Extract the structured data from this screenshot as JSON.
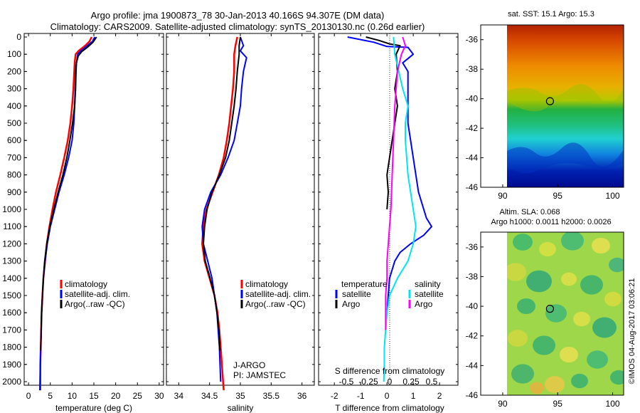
{
  "header": {
    "line1": "Argo profile: jma 1900873_78 30-Jan-2013 40.166S 94.307E (DM data)",
    "line2": "Climatology: CARS2009. Satellite-adjusted climatology: synTS_20130130.nc (0.26d earlier)"
  },
  "colors": {
    "climatology": "#ff0000",
    "satellite": "#0000ff",
    "argo": "#000000",
    "salinity_satellite": "#00e5ee",
    "salinity_argo": "#ff00ff"
  },
  "chart_data": [
    {
      "type": "line",
      "id": "temperature",
      "xlabel": "temperature (deg C)",
      "xlim": [
        -1,
        31
      ],
      "xticks": [
        0,
        5,
        10,
        15,
        20,
        25,
        30
      ],
      "ylim": [
        0,
        2050
      ],
      "yticks": [
        0,
        100,
        200,
        300,
        400,
        500,
        600,
        700,
        800,
        900,
        1000,
        1100,
        1200,
        1300,
        1400,
        1500,
        1600,
        1700,
        1800,
        1900,
        2000
      ],
      "legend": [
        "climatology",
        "satellite-adj. clim.",
        "Argo(..raw -QC)"
      ],
      "series": [
        {
          "name": "climatology",
          "color": "#ff0000",
          "width": 2.5,
          "x": [
            14.5,
            14.0,
            13.0,
            11.5,
            10.8,
            10.6,
            10.5,
            10.3,
            10.0,
            9.6,
            9.0,
            8.2,
            7.3,
            6.3,
            5.5,
            4.8,
            4.2,
            3.8,
            3.4,
            3.2,
            3.0,
            2.9,
            2.8,
            2.7,
            2.7
          ],
          "y": [
            0,
            25,
            50,
            80,
            100,
            150,
            200,
            300,
            400,
            500,
            600,
            700,
            800,
            900,
            1000,
            1100,
            1200,
            1300,
            1400,
            1500,
            1600,
            1700,
            1800,
            1900,
            2050
          ]
        },
        {
          "name": "satellite-adj. clim.",
          "color": "#0000ff",
          "width": 2,
          "x": [
            15.2,
            14.7,
            13.5,
            12.0,
            11.3,
            11.0,
            10.8,
            10.7,
            10.6,
            10.4,
            10.0,
            9.2,
            8.2,
            7.0,
            6.0,
            5.0,
            4.3,
            3.8,
            3.4,
            3.2,
            3.0,
            2.9,
            2.8,
            2.7,
            2.6
          ],
          "y": [
            0,
            25,
            50,
            80,
            100,
            150,
            200,
            300,
            400,
            500,
            600,
            700,
            800,
            900,
            1000,
            1100,
            1200,
            1300,
            1400,
            1500,
            1600,
            1700,
            1800,
            1900,
            2050
          ]
        },
        {
          "name": "Argo(..raw -QC)",
          "color": "#000000",
          "width": 2,
          "x": [
            15.6,
            14.8,
            13.5,
            12.2,
            11.4,
            11.0,
            10.9,
            10.8,
            10.6,
            10.1,
            9.5,
            8.8,
            7.9,
            6.8,
            5.8,
            4.9,
            4.2,
            3.7,
            3.4,
            3.2,
            3.0,
            2.9,
            2.8
          ],
          "y": [
            0,
            30,
            60,
            85,
            110,
            150,
            200,
            300,
            400,
            500,
            600,
            700,
            800,
            900,
            1000,
            1100,
            1200,
            1300,
            1400,
            1500,
            1600,
            1700,
            1820
          ]
        }
      ],
      "annotations": []
    },
    {
      "type": "line",
      "id": "salinity",
      "xlabel": "salinity",
      "xlim": [
        33.8,
        36.2
      ],
      "xticks": [
        34,
        34.5,
        35,
        35.5,
        36
      ],
      "ylim": [
        0,
        2050
      ],
      "legend": [
        "climatology",
        "satellite-adj. clim.",
        "Argo(..raw -QC)"
      ],
      "series": [
        {
          "name": "climatology",
          "color": "#ff0000",
          "width": 2.5,
          "x": [
            34.95,
            34.92,
            34.9,
            34.9,
            34.88,
            34.85,
            34.82,
            34.78,
            34.73,
            34.65,
            34.55,
            34.45,
            34.4,
            34.38,
            34.42,
            34.5,
            34.58,
            34.63,
            34.66,
            34.68,
            34.7,
            34.72,
            34.73
          ],
          "y": [
            0,
            50,
            100,
            200,
            300,
            400,
            500,
            600,
            700,
            800,
            900,
            1000,
            1100,
            1200,
            1300,
            1400,
            1500,
            1600,
            1700,
            1800,
            1900,
            2000,
            2050
          ]
        },
        {
          "name": "satellite-adj. clim.",
          "color": "#0000ff",
          "width": 2,
          "x": [
            35.0,
            35.05,
            35.0,
            35.1,
            35.05,
            35.02,
            35.0,
            34.95,
            34.9,
            34.8,
            34.68,
            34.52,
            34.42,
            34.38,
            34.4,
            34.47,
            34.54,
            34.58,
            34.62,
            34.64,
            34.66,
            34.67,
            34.68
          ],
          "y": [
            0,
            50,
            80,
            120,
            200,
            300,
            400,
            500,
            600,
            700,
            800,
            900,
            1000,
            1100,
            1200,
            1300,
            1400,
            1500,
            1600,
            1700,
            1800,
            1900,
            2000
          ]
        },
        {
          "name": "Argo(..raw -QC)",
          "color": "#000000",
          "width": 2,
          "x": [
            35.0,
            34.98,
            34.98,
            34.95,
            34.93,
            34.9,
            34.86,
            34.82,
            34.76,
            34.66,
            34.54,
            34.46,
            34.42,
            34.4,
            34.43,
            34.51,
            34.58,
            34.62,
            34.65,
            34.67
          ],
          "y": [
            0,
            50,
            100,
            200,
            300,
            400,
            500,
            600,
            700,
            800,
            900,
            1000,
            1100,
            1200,
            1300,
            1400,
            1500,
            1600,
            1700,
            1820
          ]
        }
      ],
      "annotations": [
        "J-ARGO",
        "PI: JAMSTEC"
      ]
    },
    {
      "type": "line",
      "id": "difference",
      "xlabel": "T difference from climatology",
      "xlabel_top": "S difference from climatology",
      "xlim": [
        -2.6,
        2.7
      ],
      "xticks": [
        -2,
        -1,
        0,
        1,
        2
      ],
      "xticks_top": [
        "-0.5",
        "-0.25",
        "0",
        "0.25",
        "0.5"
      ],
      "ylim": [
        0,
        2050
      ],
      "legend_titles": [
        "temperature",
        "salinity"
      ],
      "legend": [
        "satellite",
        "Argo",
        "satellite",
        "Argo"
      ],
      "series": [
        {
          "name": "satellite",
          "group": "temperature",
          "color": "#0000ff",
          "width": 2,
          "x": [
            -1.5,
            -0.5,
            0.0,
            0.8,
            1.0,
            0.6,
            0.8,
            0.8,
            0.8,
            0.8,
            0.9,
            1.0,
            1.1,
            1.2,
            1.4,
            1.5,
            1.7,
            1.4,
            0.9,
            0.5,
            0.3,
            0.1,
            0.05,
            0.0
          ],
          "y": [
            0,
            30,
            55,
            60,
            100,
            150,
            200,
            300,
            400,
            500,
            600,
            700,
            800,
            900,
            1000,
            1050,
            1100,
            1150,
            1200,
            1250,
            1300,
            1400,
            1500,
            1600
          ]
        },
        {
          "name": "Argo",
          "group": "temperature",
          "color": "#000000",
          "width": 2,
          "x": [
            -0.8,
            -0.3,
            0.1,
            0.5,
            0.35,
            0.4,
            0.3,
            0.4,
            0.3,
            0.2,
            0.1,
            0.0,
            0.05,
            0.0
          ],
          "y": [
            0,
            20,
            40,
            50,
            100,
            200,
            300,
            400,
            500,
            600,
            700,
            800,
            900,
            1000
          ]
        },
        {
          "name": "satellite",
          "group": "salinity",
          "color": "#00e5ee",
          "width": 2,
          "x": [
            0.25,
            0.3,
            0.45,
            0.6,
            0.8,
            0.7,
            0.7,
            0.75,
            0.8,
            0.9,
            1.0,
            1.1,
            1.0,
            0.8,
            0.4,
            0.1,
            0.0,
            -0.05,
            -0.1,
            -0.1,
            -0.12
          ],
          "y": [
            0,
            100,
            200,
            300,
            400,
            500,
            600,
            700,
            800,
            900,
            1000,
            1100,
            1200,
            1300,
            1400,
            1500,
            1600,
            1700,
            1800,
            1900,
            2000
          ]
        },
        {
          "name": "Argo",
          "group": "salinity",
          "color": "#ff00ff",
          "width": 2,
          "x": [
            0.6,
            0.7,
            0.55,
            0.4,
            0.3,
            0.25,
            0.2,
            0.15,
            0.1,
            0.05,
            0.0,
            0.0,
            -0.05,
            -0.05,
            -0.05
          ],
          "y": [
            0,
            50,
            100,
            200,
            400,
            600,
            800,
            1000,
            1100,
            1200,
            1300,
            1400,
            1500,
            1600,
            1700
          ]
        }
      ],
      "annotations": []
    },
    {
      "type": "heatmap",
      "id": "sst_map",
      "title": "sat. SST: 15.1 Argo: 15.3",
      "xlim": [
        88,
        101
      ],
      "xticks": [
        90,
        95,
        100
      ],
      "ylim": [
        -46,
        -35
      ],
      "yticks": [
        -36,
        -38,
        -40,
        -42,
        -44,
        -46
      ],
      "data_xlim": [
        90,
        101
      ],
      "marker": {
        "lon": 94.3,
        "lat": -40.17
      }
    },
    {
      "type": "heatmap",
      "id": "sla_map",
      "title": "Altim. SLA: 0.068",
      "subtitle": "Argo h1000: 0.0011 h2000: 0.0026",
      "xlim": [
        88,
        101
      ],
      "xticks": [
        90,
        95,
        100
      ],
      "ylim": [
        -46,
        -35
      ],
      "yticks": [
        -36,
        -38,
        -40,
        -42,
        -44,
        -46
      ],
      "data_xlim": [
        90,
        101
      ],
      "marker": {
        "lon": 94.3,
        "lat": -40.17
      }
    }
  ],
  "footer": {
    "credit": "©IMOS 04-Aug-2017 03:06:21"
  }
}
